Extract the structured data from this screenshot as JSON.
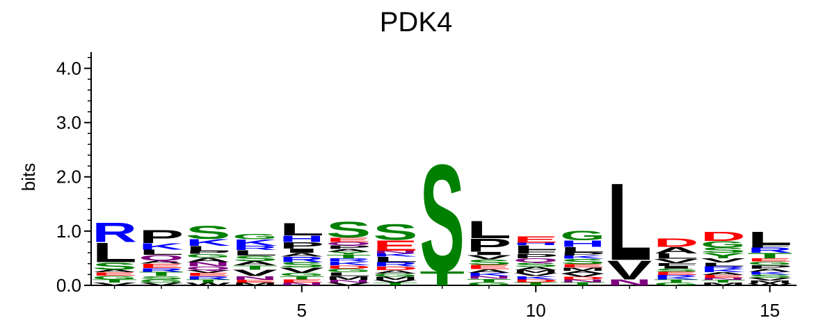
{
  "chart_data": {
    "type": "logo",
    "title": "PDK4",
    "ylabel": "bits",
    "xlim": [
      0.5,
      15.57
    ],
    "ylim": [
      0,
      4.3
    ],
    "xticks": [
      5,
      10,
      15
    ],
    "yticks": [
      {
        "value": 0,
        "label": "0.0"
      },
      {
        "value": 1,
        "label": "1.0"
      },
      {
        "value": 2,
        "label": "2.0"
      },
      {
        "value": 3,
        "label": "3.0"
      },
      {
        "value": 4,
        "label": "4.0"
      }
    ],
    "letter_colors": {
      "A": "#000000",
      "V": "#000000",
      "L": "#000000",
      "I": "#000000",
      "P": "#000000",
      "M": "#000000",
      "F": "#000000",
      "W": "#000000",
      "S": "#008000",
      "T": "#008000",
      "G": "#008000",
      "Y": "#008000",
      "C": "#008000",
      "N": "#800080",
      "Q": "#800080",
      "K": "#0000ff",
      "R": "#0000ff",
      "H": "#0000ff",
      "D": "#ff0000",
      "E": "#ff0000"
    },
    "stacks": [
      [
        {
          "letter": "V",
          "bits": 0.05
        },
        {
          "letter": "T",
          "bits": 0.06
        },
        {
          "letter": "G",
          "bits": 0.07
        },
        {
          "letter": "E",
          "bits": 0.06
        },
        {
          "letter": "A",
          "bits": 0.05
        },
        {
          "letter": "S",
          "bits": 0.14
        },
        {
          "letter": "L",
          "bits": 0.37
        },
        {
          "letter": "R",
          "bits": 0.37
        }
      ],
      [
        {
          "letter": "V",
          "bits": 0.05
        },
        {
          "letter": "G",
          "bits": 0.06
        },
        {
          "letter": "S",
          "bits": 0.06
        },
        {
          "letter": "T",
          "bits": 0.08
        },
        {
          "letter": "R",
          "bits": 0.07
        },
        {
          "letter": "E",
          "bits": 0.08
        },
        {
          "letter": "A",
          "bits": 0.06
        },
        {
          "letter": "Q",
          "bits": 0.1
        },
        {
          "letter": "L",
          "bits": 0.1
        },
        {
          "letter": "K",
          "bits": 0.12
        },
        {
          "letter": "P",
          "bits": 0.25
        }
      ],
      [
        {
          "letter": "W",
          "bits": 0.05
        },
        {
          "letter": "T",
          "bits": 0.06
        },
        {
          "letter": "R",
          "bits": 0.06
        },
        {
          "letter": "E",
          "bits": 0.06
        },
        {
          "letter": "V",
          "bits": 0.05
        },
        {
          "letter": "Q",
          "bits": 0.07
        },
        {
          "letter": "N",
          "bits": 0.08
        },
        {
          "letter": "A",
          "bits": 0.08
        },
        {
          "letter": "G",
          "bits": 0.07
        },
        {
          "letter": "P",
          "bits": 0.05
        },
        {
          "letter": "L",
          "bits": 0.1
        },
        {
          "letter": "K",
          "bits": 0.13
        },
        {
          "letter": "S",
          "bits": 0.25
        }
      ],
      [
        {
          "letter": "M",
          "bits": 0.05
        },
        {
          "letter": "E",
          "bits": 0.05
        },
        {
          "letter": "N",
          "bits": 0.07
        },
        {
          "letter": "V",
          "bits": 0.12
        },
        {
          "letter": "T",
          "bits": 0.08
        },
        {
          "letter": "A",
          "bits": 0.08
        },
        {
          "letter": "S",
          "bits": 0.1
        },
        {
          "letter": "L",
          "bits": 0.1
        },
        {
          "letter": "R",
          "bits": 0.08
        },
        {
          "letter": "K",
          "bits": 0.12
        },
        {
          "letter": "G",
          "bits": 0.1
        }
      ],
      [
        {
          "letter": "N",
          "bits": 0.05
        },
        {
          "letter": "E",
          "bits": 0.06
        },
        {
          "letter": "T",
          "bits": 0.06
        },
        {
          "letter": "G",
          "bits": 0.06
        },
        {
          "letter": "V",
          "bits": 0.1
        },
        {
          "letter": "S",
          "bits": 0.1
        },
        {
          "letter": "R",
          "bits": 0.1
        },
        {
          "letter": "A",
          "bits": 0.07
        },
        {
          "letter": "I",
          "bits": 0.08
        },
        {
          "letter": "P",
          "bits": 0.12
        },
        {
          "letter": "H",
          "bits": 0.12
        },
        {
          "letter": "L",
          "bits": 0.23
        }
      ],
      [
        {
          "letter": "V",
          "bits": 0.05
        },
        {
          "letter": "N",
          "bits": 0.05
        },
        {
          "letter": "M",
          "bits": 0.07
        },
        {
          "letter": "L",
          "bits": 0.07
        },
        {
          "letter": "G",
          "bits": 0.07
        },
        {
          "letter": "D",
          "bits": 0.06
        },
        {
          "letter": "K",
          "bits": 0.07
        },
        {
          "letter": "R",
          "bits": 0.06
        },
        {
          "letter": "T",
          "bits": 0.07
        },
        {
          "letter": "Y",
          "bits": 0.05
        },
        {
          "letter": "A",
          "bits": 0.05
        },
        {
          "letter": "P",
          "bits": 0.07
        },
        {
          "letter": "Q",
          "bits": 0.06
        },
        {
          "letter": "E",
          "bits": 0.08
        },
        {
          "letter": "S",
          "bits": 0.3
        }
      ],
      [
        {
          "letter": "T",
          "bits": 0.05
        },
        {
          "letter": "V",
          "bits": 0.05
        },
        {
          "letter": "M",
          "bits": 0.06
        },
        {
          "letter": "G",
          "bits": 0.06
        },
        {
          "letter": "A",
          "bits": 0.06
        },
        {
          "letter": "D",
          "bits": 0.07
        },
        {
          "letter": "R",
          "bits": 0.08
        },
        {
          "letter": "L",
          "bits": 0.1
        },
        {
          "letter": "K",
          "bits": 0.06
        },
        {
          "letter": "N",
          "bits": 0.05
        },
        {
          "letter": "E",
          "bits": 0.2
        },
        {
          "letter": "S",
          "bits": 0.3
        }
      ],
      [
        {
          "letter": "T",
          "bits": 0.27
        },
        {
          "letter": "S",
          "bits": 2.05
        }
      ],
      [
        {
          "letter": "G",
          "bits": 0.06
        },
        {
          "letter": "T",
          "bits": 0.06
        },
        {
          "letter": "N",
          "bits": 0.05
        },
        {
          "letter": "K",
          "bits": 0.06
        },
        {
          "letter": "A",
          "bits": 0.07
        },
        {
          "letter": "E",
          "bits": 0.08
        },
        {
          "letter": "S",
          "bits": 0.1
        },
        {
          "letter": "V",
          "bits": 0.08
        },
        {
          "letter": "I",
          "bits": 0.06
        },
        {
          "letter": "P",
          "bits": 0.25
        },
        {
          "letter": "L",
          "bits": 0.33
        }
      ],
      [
        {
          "letter": "T",
          "bits": 0.06
        },
        {
          "letter": "D",
          "bits": 0.05
        },
        {
          "letter": "K",
          "bits": 0.06
        },
        {
          "letter": "V",
          "bits": 0.06
        },
        {
          "letter": "M",
          "bits": 0.05
        },
        {
          "letter": "A",
          "bits": 0.06
        },
        {
          "letter": "S",
          "bits": 0.08
        },
        {
          "letter": "Q",
          "bits": 0.08
        },
        {
          "letter": "P",
          "bits": 0.08
        },
        {
          "letter": "F",
          "bits": 0.08
        },
        {
          "letter": "L",
          "bits": 0.08
        },
        {
          "letter": "H",
          "bits": 0.05
        },
        {
          "letter": "E",
          "bits": 0.12
        }
      ],
      [
        {
          "letter": "T",
          "bits": 0.06
        },
        {
          "letter": "N",
          "bits": 0.05
        },
        {
          "letter": "D",
          "bits": 0.05
        },
        {
          "letter": "V",
          "bits": 0.06
        },
        {
          "letter": "A",
          "bits": 0.05
        },
        {
          "letter": "M",
          "bits": 0.06
        },
        {
          "letter": "E",
          "bits": 0.06
        },
        {
          "letter": "S",
          "bits": 0.1
        },
        {
          "letter": "K",
          "bits": 0.06
        },
        {
          "letter": "P",
          "bits": 0.06
        },
        {
          "letter": "L",
          "bits": 0.1
        },
        {
          "letter": "H",
          "bits": 0.12
        },
        {
          "letter": "G",
          "bits": 0.18
        }
      ],
      [
        {
          "letter": "N",
          "bits": 0.11
        },
        {
          "letter": "V",
          "bits": 0.36
        },
        {
          "letter": "L",
          "bits": 1.48
        }
      ],
      [
        {
          "letter": "G",
          "bits": 0.05
        },
        {
          "letter": "T",
          "bits": 0.06
        },
        {
          "letter": "K",
          "bits": 0.05
        },
        {
          "letter": "R",
          "bits": 0.03
        },
        {
          "letter": "E",
          "bits": 0.06
        },
        {
          "letter": "S",
          "bits": 0.06
        },
        {
          "letter": "I",
          "bits": 0.05
        },
        {
          "letter": "F",
          "bits": 0.05
        },
        {
          "letter": "V",
          "bits": 0.08
        },
        {
          "letter": "L",
          "bits": 0.1
        },
        {
          "letter": "A",
          "bits": 0.12
        },
        {
          "letter": "D",
          "bits": 0.16
        }
      ],
      [
        {
          "letter": "M",
          "bits": 0.05
        },
        {
          "letter": "T",
          "bits": 0.05
        },
        {
          "letter": "N",
          "bits": 0.04
        },
        {
          "letter": "E",
          "bits": 0.05
        },
        {
          "letter": "A",
          "bits": 0.05
        },
        {
          "letter": "K",
          "bits": 0.06
        },
        {
          "letter": "R",
          "bits": 0.05
        },
        {
          "letter": "L",
          "bits": 0.07
        },
        {
          "letter": "V",
          "bits": 0.08
        },
        {
          "letter": "Y",
          "bits": 0.1
        },
        {
          "letter": "S",
          "bits": 0.1
        },
        {
          "letter": "G",
          "bits": 0.12
        },
        {
          "letter": "D",
          "bits": 0.17
        }
      ],
      [
        {
          "letter": "W",
          "bits": 0.04
        },
        {
          "letter": "M",
          "bits": 0.05
        },
        {
          "letter": "V",
          "bits": 0.05
        },
        {
          "letter": "S",
          "bits": 0.06
        },
        {
          "letter": "K",
          "bits": 0.05
        },
        {
          "letter": "A",
          "bits": 0.06
        },
        {
          "letter": "P",
          "bits": 0.07
        },
        {
          "letter": "G",
          "bits": 0.06
        },
        {
          "letter": "E",
          "bits": 0.06
        },
        {
          "letter": "T",
          "bits": 0.1
        },
        {
          "letter": "R",
          "bits": 0.1
        },
        {
          "letter": "F",
          "bits": 0.05
        },
        {
          "letter": "L",
          "bits": 0.25
        }
      ]
    ]
  }
}
